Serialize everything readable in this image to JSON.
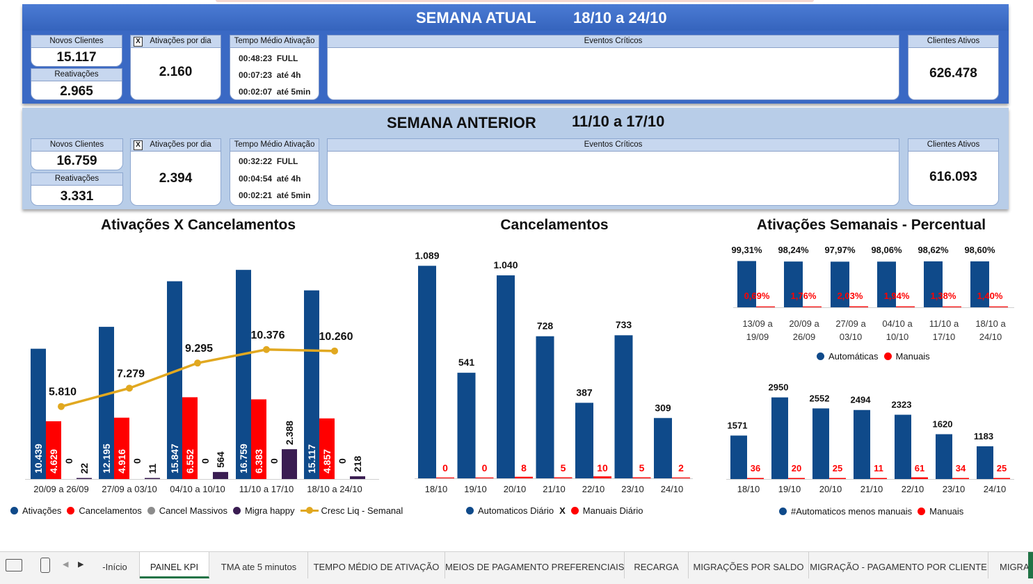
{
  "current_week": {
    "title": "SEMANA ATUAL",
    "range": "18/10 a 24/10",
    "novos_label": "Novos Clientes",
    "novos_value": "15.117",
    "reativ_label": "Reativações",
    "reativ_value": "2.965",
    "ativ_label": "Ativações por dia",
    "ativ_value": "2.160",
    "tma_label": "Tempo Médio Ativação",
    "tma": [
      {
        "time": "00:48:23",
        "label": "FULL"
      },
      {
        "time": "00:07:23",
        "label": "até 4h"
      },
      {
        "time": "00:02:07",
        "label": "até 5min"
      }
    ],
    "eventos_label": "Eventos Críticos",
    "ativos_label": "Clientes Ativos",
    "ativos_value": "626.478"
  },
  "previous_week": {
    "title": "SEMANA ANTERIOR",
    "range": "11/10 a 17/10",
    "novos_label": "Novos Clientes",
    "novos_value": "16.759",
    "reativ_label": "Reativações",
    "reativ_value": "3.331",
    "ativ_label": "Ativações por dia",
    "ativ_value": "2.394",
    "tma_label": "Tempo Médio Ativação",
    "tma": [
      {
        "time": "00:32:22",
        "label": "FULL"
      },
      {
        "time": "00:04:54",
        "label": "até 4h"
      },
      {
        "time": "00:02:21",
        "label": "até 5min"
      }
    ],
    "eventos_label": "Eventos Críticos",
    "ativos_label": "Clientes Ativos",
    "ativos_value": "616.093"
  },
  "x_icon": "X",
  "colors": {
    "blue": "#0f4a8a",
    "red": "#ff0000",
    "purple": "#3a1d52",
    "gold": "#e1a820",
    "gray": "#8c8c8c"
  },
  "legend_sep": "X",
  "chart_data": [
    {
      "type": "bar",
      "title": "Ativações X Cancelamentos",
      "categories": [
        "20/09 a 26/09",
        "27/09 a 03/10",
        "04/10 a 10/10",
        "11/10 a 17/10",
        "18/10 a 24/10"
      ],
      "series": [
        {
          "name": "Ativações",
          "values": [
            10439,
            12195,
            15847,
            16759,
            15117
          ],
          "labels": [
            "10.439",
            "12.195",
            "15.847",
            "16.759",
            "15.117"
          ]
        },
        {
          "name": "Cancelamentos",
          "values": [
            4629,
            4916,
            6552,
            6383,
            4857
          ],
          "labels": [
            "4.629",
            "4.916",
            "6.552",
            "6.383",
            "4.857"
          ]
        },
        {
          "name": "Cancel Massivos",
          "values": [
            0,
            0,
            0,
            0,
            0
          ],
          "labels": [
            "0",
            "0",
            "0",
            "0",
            "0"
          ]
        },
        {
          "name": "Migra happy",
          "values": [
            22,
            11,
            564,
            2388,
            218
          ],
          "labels": [
            "22",
            "11",
            "564",
            "2.388",
            "218"
          ]
        },
        {
          "name": "Cresc Liq - Semanal",
          "type": "line",
          "values": [
            5810,
            7279,
            9295,
            10376,
            10260
          ],
          "labels": [
            "5.810",
            "7.279",
            "9.295",
            "10.376",
            "10.260"
          ]
        }
      ]
    },
    {
      "type": "bar",
      "title": "Cancelamentos",
      "categories": [
        "18/10",
        "19/10",
        "20/10",
        "21/10",
        "22/10",
        "23/10",
        "24/10"
      ],
      "series": [
        {
          "name": "Automaticos Diário",
          "values": [
            1089,
            541,
            1040,
            728,
            387,
            733,
            309
          ],
          "labels": [
            "1.089",
            "541",
            "1.040",
            "728",
            "387",
            "733",
            "309"
          ]
        },
        {
          "name": "Manuais Diário",
          "values": [
            0,
            0,
            8,
            5,
            10,
            5,
            2
          ],
          "labels": [
            "0",
            "0",
            "8",
            "5",
            "10",
            "5",
            "2"
          ]
        }
      ]
    },
    {
      "type": "bar",
      "title": "Ativações Semanais - Percentual",
      "categories": [
        "13/09 a 19/09",
        "20/09 a 26/09",
        "27/09 a 03/10",
        "04/10 a 10/10",
        "11/10 a 17/10",
        "18/10 a 24/10"
      ],
      "categories_top": [
        "13/09 a",
        "20/09 a",
        "27/09 a",
        "04/10 a",
        "11/10 a",
        "18/10 a"
      ],
      "categories_bottom": [
        "19/09",
        "26/09",
        "03/10",
        "10/10",
        "17/10",
        "24/10"
      ],
      "series": [
        {
          "name": "Automáticas",
          "values": [
            99.31,
            98.24,
            97.97,
            98.06,
            98.62,
            98.6
          ],
          "labels": [
            "99,31%",
            "98,24%",
            "97,97%",
            "98,06%",
            "98,62%",
            "98,60%"
          ]
        },
        {
          "name": "Manuais",
          "values": [
            0.69,
            1.76,
            2.03,
            1.94,
            1.38,
            1.4
          ],
          "labels": [
            "0,69%",
            "1,76%",
            "2,03%",
            "1,94%",
            "1,38%",
            "1,40%"
          ]
        }
      ]
    },
    {
      "type": "bar",
      "title": "",
      "categories": [
        "18/10",
        "19/10",
        "20/10",
        "21/10",
        "22/10",
        "23/10",
        "24/10"
      ],
      "series": [
        {
          "name": "#Automaticos menos manuais",
          "values": [
            1571,
            2950,
            2552,
            2494,
            2323,
            1620,
            1183
          ],
          "labels": [
            "1571",
            "2950",
            "2552",
            "2494",
            "2323",
            "1620",
            "1183"
          ]
        },
        {
          "name": "Manuais",
          "values": [
            36,
            20,
            25,
            11,
            61,
            34,
            25
          ],
          "labels": [
            "36",
            "20",
            "25",
            "11",
            "61",
            "34",
            "25"
          ]
        }
      ]
    }
  ],
  "tabs": [
    "-Início",
    "PAINEL KPI",
    "TMA ate 5 minutos",
    "TEMPO MÉDIO DE ATIVAÇÃO",
    "MEIOS DE PAGAMENTO PREFERENCIAIS-",
    "RECARGA",
    "MIGRAÇÕES POR SALDO",
    "MIGRAÇÃO - PAGAMENTO POR CLIENTE",
    "MIGRA"
  ],
  "active_tab": "PAINEL KPI"
}
